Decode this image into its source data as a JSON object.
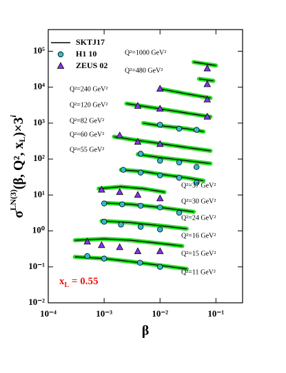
{
  "chart_data": {
    "type": "scatter",
    "y_label": {
      "base": "σ",
      "sup": "LN(3)",
      "rest": "(β, Q², x",
      "sub": "L",
      "end": ")×3",
      "sup2": "i"
    },
    "x_label": "β",
    "log_x": true,
    "log_y": true,
    "xlim": [
      0.0001,
      0.3
    ],
    "ylim": [
      0.01,
      400000
    ],
    "xticks": [
      {
        "value": 0.0001,
        "label": "10⁻⁴"
      },
      {
        "value": 0.001,
        "label": "10⁻³"
      },
      {
        "value": 0.01,
        "label": "10⁻²"
      },
      {
        "value": 0.1,
        "label": "10⁻¹"
      }
    ],
    "yticks": [
      {
        "value": 0.01,
        "label": "10⁻²"
      },
      {
        "value": 0.1,
        "label": "10⁻¹"
      },
      {
        "value": 1,
        "label": "10⁰"
      },
      {
        "value": 10,
        "label": "10¹"
      },
      {
        "value": 100,
        "label": "10²"
      },
      {
        "value": 1000,
        "label": "10³"
      },
      {
        "value": 10000,
        "label": "10⁴"
      },
      {
        "value": 100000,
        "label": "10⁵"
      }
    ],
    "legend": "upper left",
    "series": [
      {
        "name": "SKTJ17",
        "kind": "line",
        "color": "#000000",
        "band_color": "#22dd22",
        "x": [
          0.0003,
          0.001,
          0.003,
          0.01,
          0.03,
          null,
          0.0003,
          0.001,
          0.003,
          0.01,
          0.025,
          null,
          0.0009,
          0.003,
          0.01,
          0.03,
          null,
          0.001,
          0.003,
          0.01,
          0.04,
          null,
          0.0008,
          0.002,
          0.005,
          0.012,
          null,
          0.002,
          0.005,
          0.01,
          0.03,
          0.06,
          null,
          0.004,
          0.01,
          0.03,
          0.08,
          null,
          0.0015,
          0.004,
          0.01,
          0.03,
          0.08,
          null,
          0.005,
          0.01,
          0.03,
          0.06,
          null,
          0.0025,
          0.01,
          0.03,
          0.08,
          null,
          0.01,
          0.03,
          0.08,
          null,
          0.05,
          0.09,
          null,
          0.04,
          0.1
        ],
        "values": [
          0.19,
          0.17,
          0.14,
          0.11,
          0.088,
          null,
          0.55,
          0.6,
          0.55,
          0.45,
          0.38,
          null,
          1.9,
          1.7,
          1.4,
          1.15,
          null,
          6,
          5.5,
          4.5,
          3.4,
          null,
          15,
          17,
          15,
          12,
          null,
          50,
          45,
          38,
          30,
          25,
          null,
          135,
          110,
          90,
          75,
          null,
          420,
          330,
          270,
          210,
          170,
          null,
          1000,
          850,
          700,
          580,
          null,
          3500,
          2500,
          1900,
          1500,
          null,
          9000,
          6500,
          5000,
          null,
          17000,
          15000,
          null,
          50000,
          40000
        ]
      },
      {
        "name": "H1 10",
        "kind": "circle",
        "color": "#33bbcc",
        "x": [
          0.0005,
          0.001,
          0.0044,
          0.01,
          0.001,
          0.002,
          0.0045,
          0.01,
          0.001,
          0.0021,
          0.0045,
          0.01,
          0.022,
          0.0022,
          0.0045,
          0.01,
          0.022,
          0.045,
          0.0045,
          0.01,
          0.022,
          0.045,
          0.01,
          0.022,
          0.045
        ],
        "values": [
          0.2,
          0.17,
          0.13,
          0.1,
          1.8,
          1.5,
          1.3,
          1.1,
          5.8,
          5.5,
          5,
          4.5,
          3.2,
          50,
          42,
          35,
          30,
          22,
          140,
          90,
          80,
          60,
          900,
          700,
          650
        ]
      },
      {
        "name": "ZEUS 02",
        "kind": "triangle",
        "color": "#8833ee",
        "x": [
          0.0005,
          0.0009,
          0.0019,
          0.004,
          0.01,
          0.0009,
          0.0019,
          0.004,
          0.01,
          0.0019,
          0.004,
          0.01,
          0.004,
          0.01,
          0.07,
          0.01,
          0.07,
          0.07,
          0.07
        ],
        "values": [
          0.5,
          0.4,
          0.35,
          0.27,
          0.27,
          14,
          12,
          10,
          8,
          450,
          300,
          260,
          3000,
          2500,
          1500,
          9000,
          4500,
          12000,
          33000
        ]
      }
    ],
    "annotations": [
      "Q²=1000 GeV²",
      "Q²=480 GeV²",
      "Q²=240 GeV²",
      "Q²=120 GeV²",
      "Q²=82 GeV²",
      "Q²=60 GeV²",
      "Q²=55 GeV²",
      "Q²=37 GeV²",
      "Q²=30 GeV²",
      "Q²=24 GeV²",
      "Q²=16 GeV²",
      "Q²=15 GeV²",
      "Q²=11 GeV²"
    ],
    "xl_label": {
      "text": "x",
      "sub": "L",
      "rest": " = 0.55",
      "color": "#ee1111"
    }
  }
}
